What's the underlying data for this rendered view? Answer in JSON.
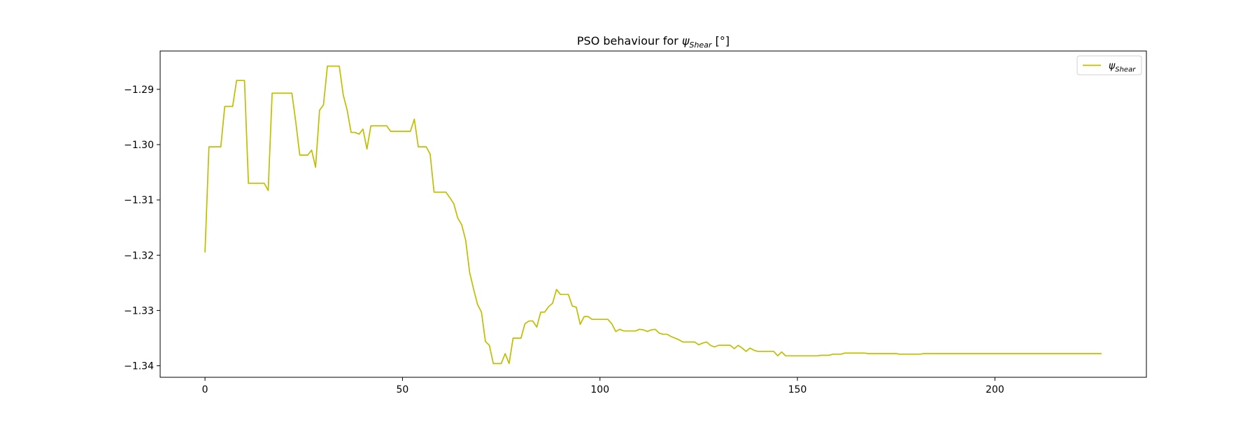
{
  "chart_data": {
    "type": "line",
    "title": "PSO behaviour for",
    "title_symbol": "ψ",
    "title_subscript": "Shear",
    "title_unit": "[°]",
    "x": [
      0,
      1,
      2,
      3,
      4,
      5,
      6,
      7,
      8,
      9,
      10,
      11,
      12,
      13,
      14,
      15,
      16,
      17,
      18,
      19,
      20,
      21,
      22,
      23,
      24,
      25,
      26,
      27,
      28,
      29,
      30,
      31,
      32,
      33,
      34,
      35,
      36,
      37,
      38,
      39,
      40,
      41,
      42,
      43,
      44,
      45,
      46,
      47,
      48,
      49,
      50,
      51,
      52,
      53,
      54,
      55,
      56,
      57,
      58,
      59,
      60,
      61,
      62,
      63,
      64,
      65,
      66,
      67,
      68,
      69,
      70,
      71,
      72,
      73,
      74,
      75,
      76,
      77,
      78,
      79,
      80,
      81,
      82,
      83,
      84,
      85,
      86,
      87,
      88,
      89,
      90,
      91,
      92,
      93,
      94,
      95,
      96,
      97,
      98,
      99,
      100,
      101,
      102,
      103,
      104,
      105,
      106,
      107,
      108,
      109,
      110,
      111,
      112,
      113,
      114,
      115,
      116,
      117,
      118,
      119,
      120,
      121,
      122,
      123,
      124,
      125,
      126,
      127,
      128,
      129,
      130,
      131,
      132,
      133,
      134,
      135,
      136,
      137,
      138,
      139,
      140,
      141,
      142,
      143,
      144,
      145,
      146,
      147,
      148,
      149,
      150,
      151,
      152,
      153,
      154,
      155,
      156,
      157,
      158,
      159,
      160,
      161,
      162,
      163,
      164,
      165,
      166,
      167,
      168,
      169,
      170,
      171,
      172,
      173,
      174,
      175,
      176,
      177,
      178,
      179,
      180,
      181,
      182,
      183,
      184,
      185,
      186,
      187,
      188,
      189,
      190,
      191,
      192,
      193,
      194,
      195,
      196,
      197,
      198,
      199,
      200,
      201,
      202,
      203,
      204,
      205,
      206,
      207,
      208,
      209,
      210,
      211,
      212,
      213,
      214,
      215,
      216,
      217,
      218,
      219,
      220,
      221,
      222,
      223,
      224,
      225,
      226,
      227
    ],
    "series": [
      {
        "name": "ψ",
        "name_subscript": "Shear",
        "color": "#bfbf00",
        "values": [
          -1.3195,
          -1.3004,
          -1.3004,
          -1.3004,
          -1.3004,
          -1.2931,
          -1.2931,
          -1.2931,
          -1.2884,
          -1.2884,
          -1.2884,
          -1.307,
          -1.307,
          -1.307,
          -1.307,
          -1.307,
          -1.3083,
          -1.2907,
          -1.2907,
          -1.2907,
          -1.2907,
          -1.2907,
          -1.2907,
          -1.296,
          -1.3019,
          -1.3019,
          -1.3019,
          -1.301,
          -1.3041,
          -1.2938,
          -1.2928,
          -1.2858,
          -1.2858,
          -1.2858,
          -1.2858,
          -1.291,
          -1.2938,
          -1.2978,
          -1.2978,
          -1.2981,
          -1.2972,
          -1.3008,
          -1.2966,
          -1.2966,
          -1.2966,
          -1.2966,
          -1.2966,
          -1.2976,
          -1.2976,
          -1.2976,
          -1.2976,
          -1.2976,
          -1.2976,
          -1.2954,
          -1.3004,
          -1.3004,
          -1.3004,
          -1.3017,
          -1.3086,
          -1.3086,
          -1.3086,
          -1.3086,
          -1.3096,
          -1.3107,
          -1.3133,
          -1.3145,
          -1.3173,
          -1.3231,
          -1.3261,
          -1.3289,
          -1.3303,
          -1.3356,
          -1.3363,
          -1.3396,
          -1.3396,
          -1.3396,
          -1.3378,
          -1.3396,
          -1.335,
          -1.335,
          -1.335,
          -1.3324,
          -1.3319,
          -1.3319,
          -1.333,
          -1.3303,
          -1.3303,
          -1.3293,
          -1.3287,
          -1.3262,
          -1.3271,
          -1.3271,
          -1.3271,
          -1.3292,
          -1.3294,
          -1.3325,
          -1.3311,
          -1.3311,
          -1.3316,
          -1.3316,
          -1.3316,
          -1.3316,
          -1.3316,
          -1.3324,
          -1.3338,
          -1.3334,
          -1.3337,
          -1.3337,
          -1.3337,
          -1.3337,
          -1.3334,
          -1.3335,
          -1.3338,
          -1.3335,
          -1.3334,
          -1.3341,
          -1.3343,
          -1.3343,
          -1.3347,
          -1.335,
          -1.3353,
          -1.3357,
          -1.3357,
          -1.3357,
          -1.3357,
          -1.3362,
          -1.3359,
          -1.3357,
          -1.3363,
          -1.3366,
          -1.3363,
          -1.3363,
          -1.3363,
          -1.3363,
          -1.3369,
          -1.3363,
          -1.3368,
          -1.3374,
          -1.3368,
          -1.3372,
          -1.3374,
          -1.3374,
          -1.3374,
          -1.3374,
          -1.3374,
          -1.3382,
          -1.3375,
          -1.3382,
          -1.3382,
          -1.3382,
          -1.3382,
          -1.3382,
          -1.3382,
          -1.3382,
          -1.3382,
          -1.3382,
          -1.3381,
          -1.3381,
          -1.3381,
          -1.3379,
          -1.3379,
          -1.3379,
          -1.3377,
          -1.3377,
          -1.3377,
          -1.3377,
          -1.3377,
          -1.3377,
          -1.3378,
          -1.3378,
          -1.3378,
          -1.3378,
          -1.3378,
          -1.3378,
          -1.3378,
          -1.3378,
          -1.3379,
          -1.3379,
          -1.3379,
          -1.3379,
          -1.3379,
          -1.3379,
          -1.3378,
          -1.3378,
          -1.3378,
          -1.3378,
          -1.3378,
          -1.3378,
          -1.3378,
          -1.3378,
          -1.3378,
          -1.3378,
          -1.3378,
          -1.3378,
          -1.3378,
          -1.3378,
          -1.3378,
          -1.3378,
          -1.3378,
          -1.3378,
          -1.3378,
          -1.3378,
          -1.3378,
          -1.3378,
          -1.3378,
          -1.3378,
          -1.3378,
          -1.3378,
          -1.3378,
          -1.3378,
          -1.3378,
          -1.3378,
          -1.3378,
          -1.3378,
          -1.3378,
          -1.3378,
          -1.3378,
          -1.3378,
          -1.3378,
          -1.3378,
          -1.3378,
          -1.3378,
          -1.3378,
          -1.3378,
          -1.3378,
          -1.3378,
          -1.3378,
          -1.3378
        ]
      }
    ],
    "xlim": [
      -11.35,
      238.35
    ],
    "ylim": [
      -1.34208,
      -1.28307
    ],
    "xticks": [
      0,
      50,
      100,
      150,
      200
    ],
    "yticks": [
      {
        "value": -1.34,
        "label": "−1.34"
      },
      {
        "value": -1.33,
        "label": "−1.33"
      },
      {
        "value": -1.32,
        "label": "−1.32"
      },
      {
        "value": -1.31,
        "label": "−1.31"
      },
      {
        "value": -1.3,
        "label": "−1.30"
      },
      {
        "value": -1.29,
        "label": "−1.29"
      }
    ],
    "grid": false,
    "legend": "upper right"
  }
}
